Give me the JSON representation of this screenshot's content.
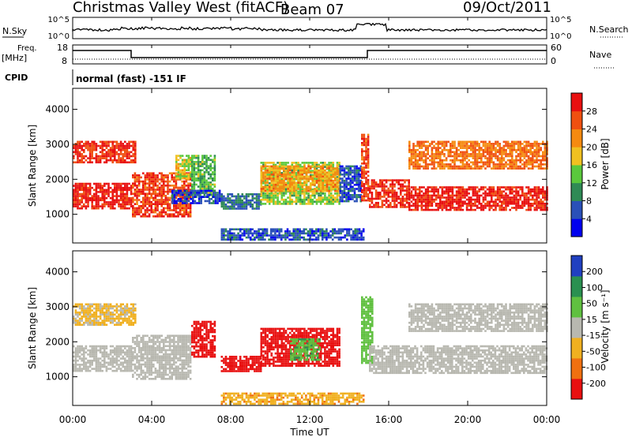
{
  "header": {
    "station": "Christmas Valley West (fitACF)",
    "beam": "Beam 07",
    "date": "09/Oct/2011"
  },
  "top_panels": {
    "nsky_label": "N.Sky",
    "nsky_ticks": [
      "10^5",
      "10^0"
    ],
    "nsearch_label": "N.Search",
    "nsearch_ticks": [
      "10^5",
      "10^0"
    ],
    "freq_label": "Freq.",
    "freq_unit": "[MHz]",
    "freq_ticks": [
      "18",
      "8"
    ],
    "nave_label": "Nave",
    "nave_ticks": [
      "60",
      "0"
    ],
    "cpid_label": "CPID",
    "cpid_text": "normal (fast) -151 IF"
  },
  "colors": {
    "power_scale": [
      "#0000ee",
      "#2a50b8",
      "#2f8a55",
      "#5ac83c",
      "#f0c020",
      "#f58a10",
      "#f05010",
      "#e81010"
    ],
    "velocity_scale": [
      "#2040c0",
      "#2a9050",
      "#60c040",
      "#b8b8b0",
      "#f0b020",
      "#f07010",
      "#e81010"
    ]
  },
  "chart_data": [
    {
      "type": "heatmap",
      "name": "power",
      "ylabel": "Slant Range [km]",
      "yticks": [
        "1000",
        "2000",
        "3000",
        "4000"
      ],
      "colorbar_label": "Power [dB]",
      "colorbar_ticks": [
        "4",
        "8",
        "12",
        "16",
        "20",
        "24",
        "28"
      ],
      "color_min": 0,
      "color_max": 32,
      "x_range_hours": [
        0,
        24
      ],
      "y_range_km": [
        180,
        4600
      ],
      "regions": [
        {
          "t0": 0.0,
          "t1": 3.0,
          "r0": 1150,
          "r1": 1900,
          "v": 30
        },
        {
          "t0": 0.0,
          "t1": 3.2,
          "r0": 2500,
          "r1": 3100,
          "v": 28
        },
        {
          "t0": 3.0,
          "t1": 6.0,
          "r0": 950,
          "r1": 2200,
          "v": 27
        },
        {
          "t0": 5.2,
          "t1": 6.0,
          "r0": 2000,
          "r1": 2700,
          "v": 17
        },
        {
          "t0": 6.0,
          "t1": 7.2,
          "r0": 1500,
          "r1": 2700,
          "v": 13
        },
        {
          "t0": 5.0,
          "t1": 7.5,
          "r0": 1300,
          "r1": 1700,
          "v": 5
        },
        {
          "t0": 7.5,
          "t1": 9.5,
          "r0": 1150,
          "r1": 1600,
          "v": 8
        },
        {
          "t0": 9.5,
          "t1": 13.5,
          "r0": 1300,
          "r1": 2500,
          "v": 15
        },
        {
          "t0": 9.5,
          "t1": 13.5,
          "r0": 1650,
          "r1": 2400,
          "v": 21
        },
        {
          "t0": 13.5,
          "t1": 14.6,
          "r0": 1400,
          "r1": 2400,
          "v": 6
        },
        {
          "t0": 14.6,
          "t1": 15.0,
          "r0": 1400,
          "r1": 3300,
          "v": 27
        },
        {
          "t0": 15.0,
          "t1": 17.0,
          "r0": 1200,
          "r1": 2000,
          "v": 29
        },
        {
          "t0": 17.0,
          "t1": 24.0,
          "r0": 1100,
          "r1": 1800,
          "v": 30
        },
        {
          "t0": 17.0,
          "t1": 24.0,
          "r0": 2300,
          "r1": 3100,
          "v": 24
        },
        {
          "t0": 7.5,
          "t1": 14.7,
          "r0": 250,
          "r1": 600,
          "v": 6
        }
      ]
    },
    {
      "type": "heatmap",
      "name": "velocity",
      "ylabel": "Slant Range [km]",
      "yticks": [
        "1000",
        "2000",
        "3000",
        "4000"
      ],
      "colorbar_label": "Velocity [m s⁻¹]",
      "colorbar_ticks": [
        "200",
        "100",
        "50",
        "15",
        "-15",
        "-50",
        "-100",
        "-200"
      ],
      "x_range_hours": [
        0,
        24
      ],
      "y_range_km": [
        180,
        4600
      ],
      "regions": [
        {
          "t0": 0.0,
          "t1": 3.0,
          "r0": 1150,
          "r1": 1900,
          "v": 0
        },
        {
          "t0": 0.0,
          "t1": 3.2,
          "r0": 2500,
          "r1": 3100,
          "v": -20
        },
        {
          "t0": 3.0,
          "t1": 6.0,
          "r0": 950,
          "r1": 2200,
          "v": 0
        },
        {
          "t0": 6.0,
          "t1": 7.2,
          "r0": 1600,
          "r1": 2600,
          "v": -220
        },
        {
          "t0": 7.5,
          "t1": 9.5,
          "r0": 1150,
          "r1": 1600,
          "v": -180
        },
        {
          "t0": 9.5,
          "t1": 13.5,
          "r0": 1300,
          "r1": 2400,
          "v": -120
        },
        {
          "t0": 11.0,
          "t1": 12.5,
          "r0": 1500,
          "r1": 2100,
          "v": 40
        },
        {
          "t0": 14.6,
          "t1": 15.2,
          "r0": 1400,
          "r1": 3300,
          "v": 30
        },
        {
          "t0": 15.0,
          "t1": 24.0,
          "r0": 1100,
          "r1": 1900,
          "v": 0
        },
        {
          "t0": 17.0,
          "t1": 24.0,
          "r0": 2300,
          "r1": 3100,
          "v": 0
        },
        {
          "t0": 7.5,
          "t1": 14.7,
          "r0": 250,
          "r1": 550,
          "v": -40
        }
      ]
    }
  ],
  "xaxis": {
    "label": "Time UT",
    "ticks": [
      "00:00",
      "04:00",
      "08:00",
      "12:00",
      "16:00",
      "20:00",
      "00:00"
    ]
  }
}
